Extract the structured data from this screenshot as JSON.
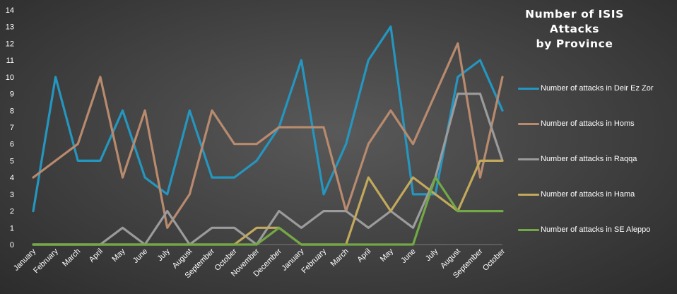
{
  "chart_data": {
    "type": "line",
    "title_line1": "Number of ISIS Attacks",
    "title_line2": "by Province",
    "categories": [
      "January",
      "February",
      "March",
      "April",
      "May",
      "June",
      "July",
      "August",
      "September",
      "October",
      "November",
      "December",
      "January",
      "February",
      "March",
      "April",
      "May",
      "June",
      "July",
      "August",
      "September",
      "October"
    ],
    "ylim": [
      0,
      14
    ],
    "yticks": [
      0,
      1,
      2,
      3,
      4,
      5,
      6,
      7,
      8,
      9,
      10,
      11,
      12,
      13,
      14
    ],
    "grid": false,
    "legend_position": "right",
    "series": [
      {
        "name": "Number of attacks in Deir Ez Zor",
        "color": "#2496c0",
        "values": [
          2,
          10,
          5,
          5,
          8,
          4,
          3,
          8,
          4,
          4,
          5,
          7,
          11,
          3,
          6,
          11,
          13,
          3,
          3,
          10,
          11,
          8
        ]
      },
      {
        "name": "Number of attacks in Homs",
        "color": "#b88a6e",
        "values": [
          4,
          5,
          6,
          10,
          4,
          8,
          1,
          3,
          8,
          6,
          6,
          7,
          7,
          7,
          2,
          6,
          8,
          6,
          9,
          12,
          4,
          10
        ]
      },
      {
        "name": "Number of attacks in Raqqa",
        "color": "#9b9b9b",
        "values": [
          0,
          0,
          0,
          0,
          1,
          0,
          2,
          0,
          1,
          1,
          0,
          2,
          1,
          2,
          2,
          1,
          2,
          1,
          4,
          9,
          9,
          5
        ]
      },
      {
        "name": "Number of attacks in Hama",
        "color": "#c2a95b",
        "values": [
          0,
          0,
          0,
          0,
          0,
          0,
          0,
          0,
          0,
          0,
          1,
          1,
          0,
          0,
          0,
          4,
          2,
          4,
          3,
          2,
          5,
          5
        ]
      },
      {
        "name": "Number of attacks in SE Aleppo",
        "color": "#72a845",
        "values": [
          0,
          0,
          0,
          0,
          0,
          0,
          0,
          0,
          0,
          0,
          0,
          1,
          0,
          0,
          0,
          0,
          0,
          0,
          4,
          2,
          2,
          2
        ]
      }
    ]
  }
}
